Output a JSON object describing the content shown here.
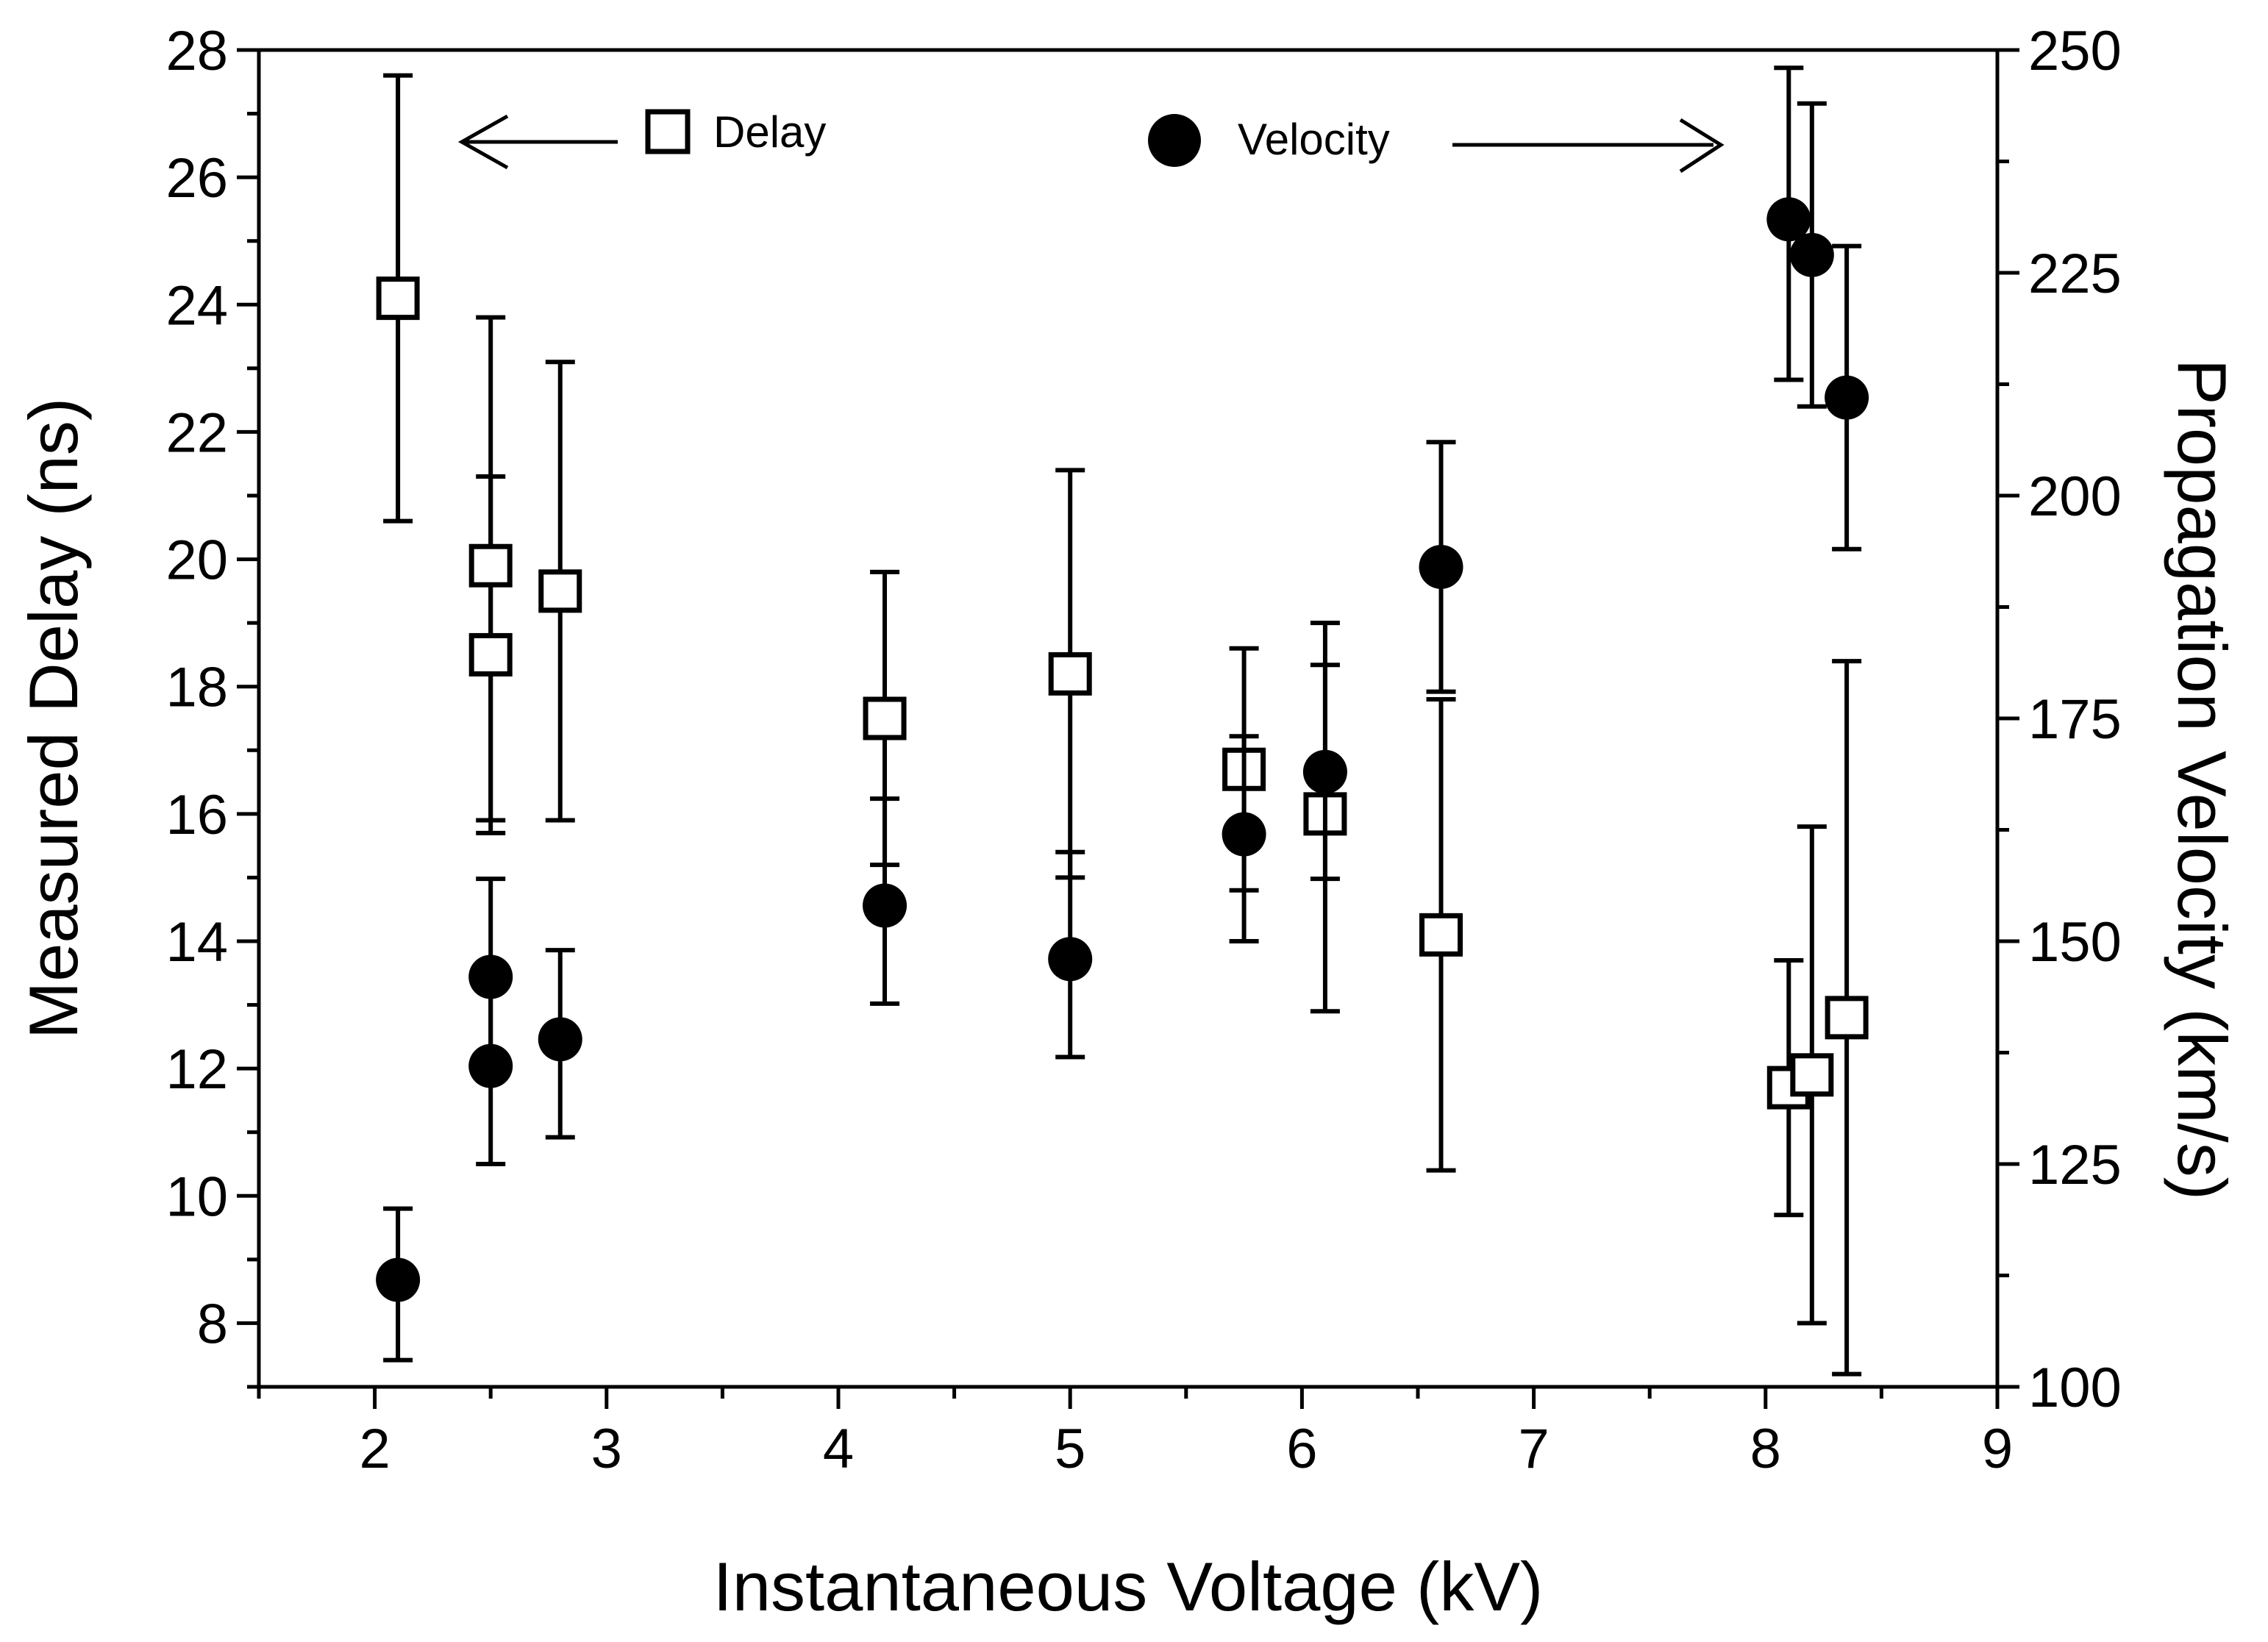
{
  "chart_data": {
    "type": "scatter",
    "xlabel": "Instantaneous Voltage (kV)",
    "ylabel_left": "Measured Delay (ns)",
    "ylabel_right": "Propagation Velocity (km/s)",
    "xlim": [
      1.5,
      9
    ],
    "ylim_left": [
      7,
      28
    ],
    "ylim_right": [
      100,
      250
    ],
    "x_ticks": [
      2,
      3,
      4,
      5,
      6,
      7,
      8,
      9
    ],
    "y_left_ticks": [
      8,
      10,
      12,
      14,
      16,
      18,
      20,
      22,
      24,
      26,
      28
    ],
    "y_right_ticks": [
      100,
      125,
      150,
      175,
      200,
      225,
      250
    ],
    "grid": false,
    "legend": [
      {
        "label": "Delay",
        "marker": "open-square",
        "axis": "left"
      },
      {
        "label": "Velocity",
        "marker": "filled-circle",
        "axis": "right"
      }
    ],
    "series": [
      {
        "name": "Delay",
        "axis": "left",
        "marker": "open-square",
        "points": [
          {
            "x": 2.1,
            "y": 24.1,
            "lo": 20.6,
            "hi": 27.6
          },
          {
            "x": 2.5,
            "y": 19.9,
            "lo": 15.9,
            "hi": 23.8
          },
          {
            "x": 2.5,
            "y": 18.5,
            "lo": 15.7,
            "hi": 21.3
          },
          {
            "x": 2.8,
            "y": 19.5,
            "lo": 15.9,
            "hi": 23.1
          },
          {
            "x": 4.2,
            "y": 17.5,
            "lo": 15.2,
            "hi": 19.8
          },
          {
            "x": 5.0,
            "y": 18.2,
            "lo": 15.0,
            "hi": 21.4
          },
          {
            "x": 5.75,
            "y": 16.7,
            "lo": 14.8,
            "hi": 18.6
          },
          {
            "x": 6.1,
            "y": 16.0,
            "lo": 12.9,
            "hi": 19.0
          },
          {
            "x": 6.6,
            "y": 14.1,
            "lo": 10.4,
            "hi": 17.8
          },
          {
            "x": 8.1,
            "y": 11.7,
            "lo": 9.7,
            "hi": 13.7
          },
          {
            "x": 8.2,
            "y": 11.9,
            "lo": 8.0,
            "hi": 15.8
          },
          {
            "x": 8.35,
            "y": 12.8,
            "lo": 7.2,
            "hi": 18.4
          }
        ]
      },
      {
        "name": "Velocity",
        "axis": "right",
        "marker": "filled-circle",
        "points": [
          {
            "x": 2.1,
            "y": 112,
            "lo": 103,
            "hi": 120
          },
          {
            "x": 2.5,
            "y": 146,
            "lo": 135,
            "hi": 157
          },
          {
            "x": 2.5,
            "y": 136,
            "lo": 125,
            "hi": 146
          },
          {
            "x": 2.8,
            "y": 139,
            "lo": 128,
            "hi": 149
          },
          {
            "x": 4.2,
            "y": 154,
            "lo": 143,
            "hi": 166
          },
          {
            "x": 5.0,
            "y": 148,
            "lo": 137,
            "hi": 160
          },
          {
            "x": 5.75,
            "y": 162,
            "lo": 150,
            "hi": 173
          },
          {
            "x": 6.1,
            "y": 169,
            "lo": 157,
            "hi": 181
          },
          {
            "x": 6.6,
            "y": 192,
            "lo": 178,
            "hi": 206
          },
          {
            "x": 8.1,
            "y": 231,
            "lo": 213,
            "hi": 248
          },
          {
            "x": 8.2,
            "y": 227,
            "lo": 210,
            "hi": 244
          },
          {
            "x": 8.35,
            "y": 211,
            "lo": 194,
            "hi": 228
          }
        ]
      }
    ]
  }
}
